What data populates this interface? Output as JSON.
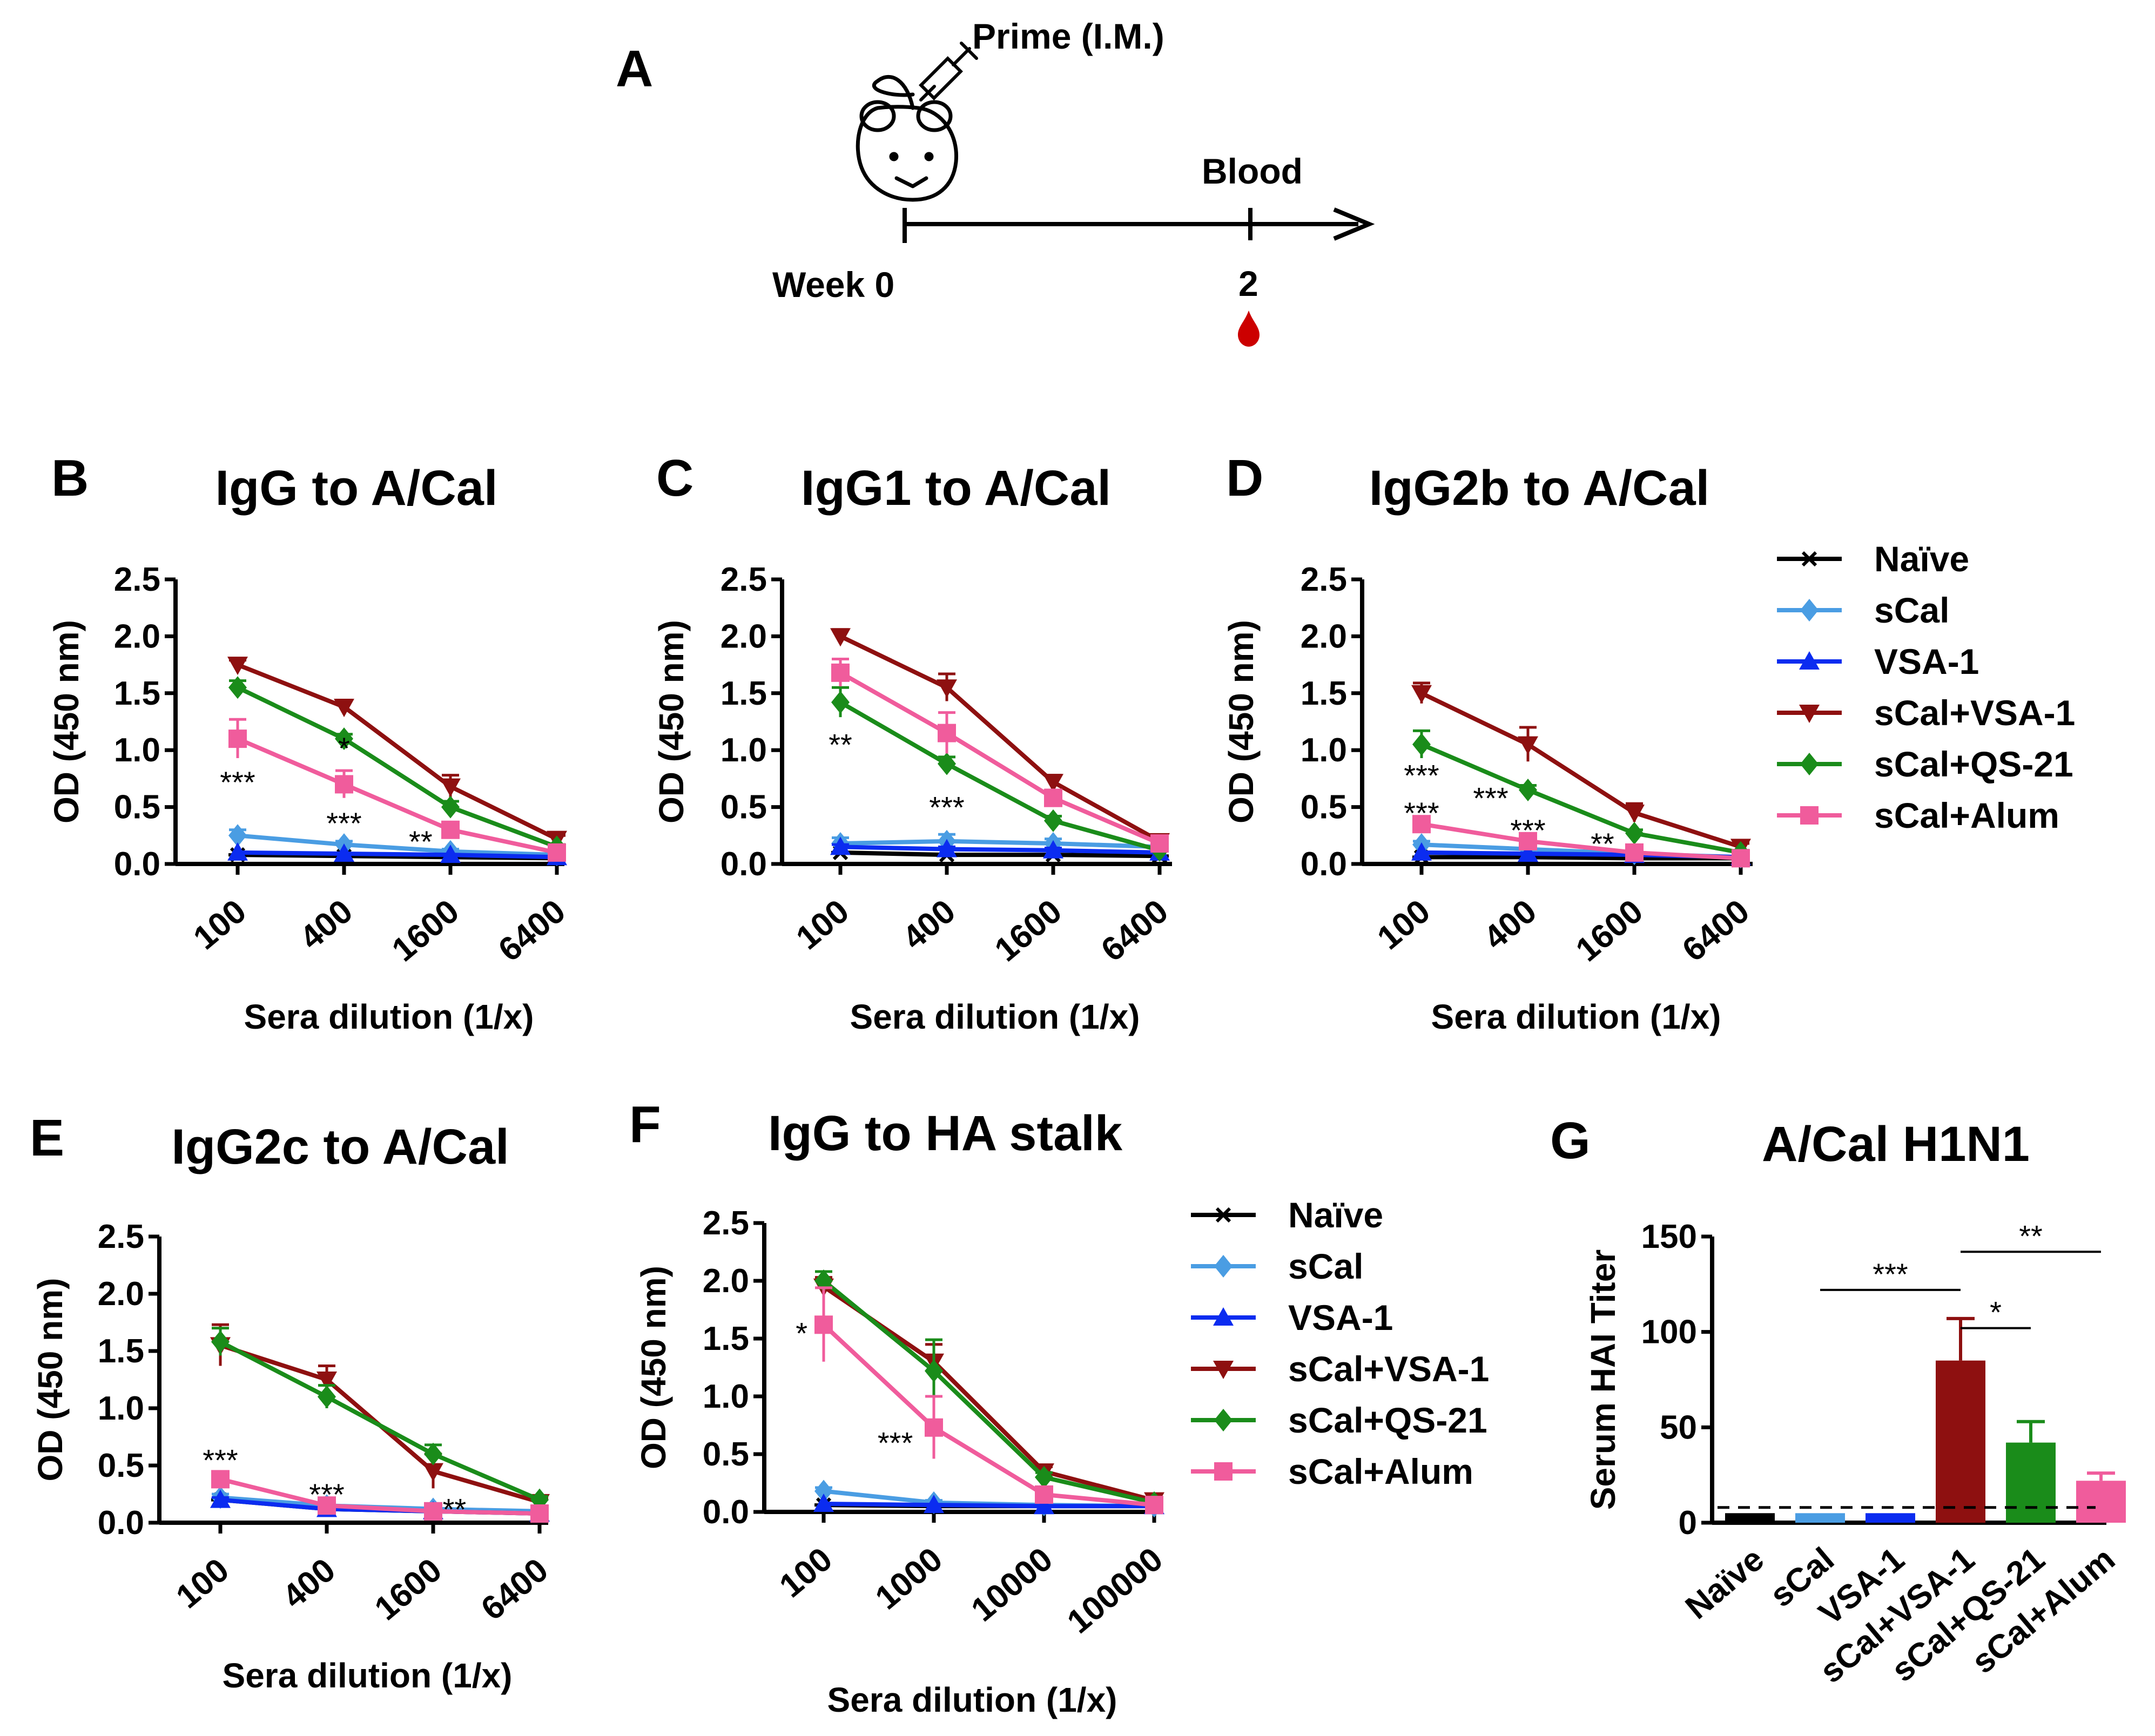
{
  "timeline": {
    "panel_letter": "A",
    "prime_label": "Prime (I.M.)",
    "blood_label": "Blood",
    "week0_label": "Week 0",
    "week2_label": "2",
    "blood_drop_color": "#cc0000",
    "mouse_icon": "mouse-icon",
    "syringe_icon": "syringe-icon"
  },
  "series_styles": [
    {
      "name": "Naïve",
      "color": "#000000",
      "marker": "star"
    },
    {
      "name": "sCal",
      "color": "#4a9de3",
      "marker": "diamond"
    },
    {
      "name": "VSA-1",
      "color": "#0b2cf0",
      "marker": "triangle-up"
    },
    {
      "name": "sCal+VSA-1",
      "color": "#8e1010",
      "marker": "triangle-down"
    },
    {
      "name": "sCal+QS-21",
      "color": "#1a8c1a",
      "marker": "diamond"
    },
    {
      "name": "sCal+Alum",
      "color": "#f05c9c",
      "marker": "square"
    }
  ],
  "chart_data": [
    {
      "id": "B",
      "letter": "B",
      "type": "line",
      "title": "IgG to A/Cal",
      "xlabel": "Sera dilution (1/x)",
      "ylabel": "OD (450 nm)",
      "x": [
        "100",
        "400",
        "1600",
        "6400"
      ],
      "ylim": [
        0,
        2.5
      ],
      "yticks": [
        "0.0",
        "0.5",
        "1.0",
        "1.5",
        "2.0",
        "2.5"
      ],
      "series": [
        {
          "name": "Naïve",
          "values": [
            0.08,
            0.07,
            0.06,
            0.05
          ],
          "errors": [
            0.01,
            0.01,
            0.01,
            0.01
          ]
        },
        {
          "name": "sCal",
          "values": [
            0.25,
            0.17,
            0.11,
            0.08
          ],
          "errors": [
            0.05,
            0.03,
            0.02,
            0.01
          ]
        },
        {
          "name": "VSA-1",
          "values": [
            0.1,
            0.09,
            0.08,
            0.06
          ],
          "errors": [
            0.01,
            0.01,
            0.01,
            0.01
          ]
        },
        {
          "name": "sCal+VSA-1",
          "values": [
            1.75,
            1.38,
            0.68,
            0.22
          ],
          "errors": [
            0.04,
            0.06,
            0.1,
            0.03
          ]
        },
        {
          "name": "sCal+QS-21",
          "values": [
            1.55,
            1.1,
            0.5,
            0.15
          ],
          "errors": [
            0.06,
            0.04,
            0.05,
            0.02
          ]
        },
        {
          "name": "sCal+Alum",
          "values": [
            1.1,
            0.7,
            0.3,
            0.1
          ],
          "errors": [
            0.17,
            0.12,
            0.04,
            0.02
          ]
        }
      ],
      "annotations": [
        {
          "text": "***",
          "x": 0,
          "y": 0.72
        },
        {
          "text": "*",
          "x": 1,
          "y": 1.02
        },
        {
          "text": "***",
          "x": 1,
          "y": 0.36
        },
        {
          "text": "**",
          "x": 1.72,
          "y": 0.2
        }
      ]
    },
    {
      "id": "C",
      "letter": "C",
      "type": "line",
      "title": "IgG1 to A/Cal",
      "xlabel": "Sera dilution (1/x)",
      "ylabel": "OD (450 nm)",
      "x": [
        "100",
        "400",
        "1600",
        "6400"
      ],
      "ylim": [
        0,
        2.5
      ],
      "yticks": [
        "0.0",
        "0.5",
        "1.0",
        "1.5",
        "2.0",
        "2.5"
      ],
      "series": [
        {
          "name": "Naïve",
          "values": [
            0.1,
            0.08,
            0.08,
            0.07
          ],
          "errors": [
            0.01,
            0.01,
            0.01,
            0.01
          ]
        },
        {
          "name": "sCal",
          "values": [
            0.18,
            0.2,
            0.18,
            0.15
          ],
          "errors": [
            0.05,
            0.06,
            0.04,
            0.03
          ]
        },
        {
          "name": "VSA-1",
          "values": [
            0.15,
            0.13,
            0.12,
            0.1
          ],
          "errors": [
            0.02,
            0.02,
            0.02,
            0.02
          ]
        },
        {
          "name": "sCal+VSA-1",
          "values": [
            2.0,
            1.55,
            0.72,
            0.2
          ],
          "errors": [
            0.06,
            0.12,
            0.06,
            0.03
          ]
        },
        {
          "name": "sCal+QS-21",
          "values": [
            1.42,
            0.88,
            0.38,
            0.12
          ],
          "errors": [
            0.13,
            0.06,
            0.04,
            0.02
          ]
        },
        {
          "name": "sCal+Alum",
          "values": [
            1.68,
            1.15,
            0.58,
            0.18
          ],
          "errors": [
            0.12,
            0.18,
            0.07,
            0.03
          ]
        }
      ],
      "annotations": [
        {
          "text": "**",
          "x": 0,
          "y": 1.05
        },
        {
          "text": "***",
          "x": 1,
          "y": 0.5
        }
      ]
    },
    {
      "id": "D",
      "letter": "D",
      "type": "line",
      "title": "IgG2b to A/Cal",
      "xlabel": "Sera dilution (1/x)",
      "ylabel": "OD (450 nm)",
      "x": [
        "100",
        "400",
        "1600",
        "6400"
      ],
      "ylim": [
        0,
        2.5
      ],
      "yticks": [
        "0.0",
        "0.5",
        "1.0",
        "1.5",
        "2.0",
        "2.5"
      ],
      "series": [
        {
          "name": "Naïve",
          "values": [
            0.06,
            0.06,
            0.05,
            0.05
          ],
          "errors": [
            0.01,
            0.01,
            0.01,
            0.01
          ]
        },
        {
          "name": "sCal",
          "values": [
            0.17,
            0.13,
            0.09,
            0.06
          ],
          "errors": [
            0.03,
            0.02,
            0.02,
            0.01
          ]
        },
        {
          "name": "VSA-1",
          "values": [
            0.1,
            0.09,
            0.08,
            0.06
          ],
          "errors": [
            0.01,
            0.01,
            0.01,
            0.01
          ]
        },
        {
          "name": "sCal+VSA-1",
          "values": [
            1.5,
            1.05,
            0.45,
            0.15
          ],
          "errors": [
            0.09,
            0.15,
            0.08,
            0.03
          ]
        },
        {
          "name": "sCal+QS-21",
          "values": [
            1.05,
            0.65,
            0.27,
            0.1
          ],
          "errors": [
            0.12,
            0.04,
            0.03,
            0.02
          ]
        },
        {
          "name": "sCal+Alum",
          "values": [
            0.35,
            0.2,
            0.1,
            0.05
          ],
          "errors": [
            0.06,
            0.04,
            0.02,
            0.01
          ]
        }
      ],
      "annotations": [
        {
          "text": "***",
          "x": 0,
          "y": 0.78
        },
        {
          "text": "***",
          "x": 0,
          "y": 0.45
        },
        {
          "text": "***",
          "x": 0.65,
          "y": 0.58
        },
        {
          "text": "***",
          "x": 1,
          "y": 0.3
        },
        {
          "text": "**",
          "x": 1.7,
          "y": 0.18
        }
      ]
    },
    {
      "id": "E",
      "letter": "E",
      "type": "line",
      "title": "IgG2c to A/Cal",
      "xlabel": "Sera dilution (1/x)",
      "ylabel": "OD (450 nm)",
      "x": [
        "100",
        "400",
        "1600",
        "6400"
      ],
      "ylim": [
        0,
        2.5
      ],
      "yticks": [
        "0.0",
        "0.5",
        "1.0",
        "1.5",
        "2.0",
        "2.5"
      ],
      "series": [
        {
          "name": "Naïve",
          "values": [
            0.2,
            0.12,
            0.1,
            0.08
          ],
          "errors": [
            0.02,
            0.02,
            0.01,
            0.01
          ]
        },
        {
          "name": "sCal",
          "values": [
            0.22,
            0.15,
            0.12,
            0.1
          ],
          "errors": [
            0.03,
            0.02,
            0.02,
            0.01
          ]
        },
        {
          "name": "VSA-1",
          "values": [
            0.2,
            0.12,
            0.1,
            0.08
          ],
          "errors": [
            0.02,
            0.02,
            0.01,
            0.01
          ]
        },
        {
          "name": "sCal+VSA-1",
          "values": [
            1.55,
            1.25,
            0.45,
            0.18
          ],
          "errors": [
            0.18,
            0.12,
            0.15,
            0.03
          ]
        },
        {
          "name": "sCal+QS-21",
          "values": [
            1.58,
            1.1,
            0.6,
            0.2
          ],
          "errors": [
            0.12,
            0.1,
            0.08,
            0.03
          ]
        },
        {
          "name": "sCal+Alum",
          "values": [
            0.38,
            0.15,
            0.1,
            0.08
          ],
          "errors": [
            0.05,
            0.03,
            0.02,
            0.01
          ]
        }
      ],
      "annotations": [
        {
          "text": "***",
          "x": 0,
          "y": 0.55
        },
        {
          "text": "***",
          "x": 1,
          "y": 0.25
        },
        {
          "text": "**",
          "x": 2.2,
          "y": 0.12
        }
      ]
    },
    {
      "id": "F",
      "letter": "F",
      "type": "line",
      "title": "IgG to HA stalk",
      "xlabel": "Sera dilution (1/x)",
      "ylabel": "OD (450 nm)",
      "x": [
        "100",
        "1000",
        "10000",
        "100000"
      ],
      "ylim": [
        0,
        2.5
      ],
      "yticks": [
        "0.0",
        "0.5",
        "1.0",
        "1.5",
        "2.0",
        "2.5"
      ],
      "series": [
        {
          "name": "Naïve",
          "values": [
            0.06,
            0.05,
            0.05,
            0.05
          ],
          "errors": [
            0.01,
            0.01,
            0.01,
            0.01
          ]
        },
        {
          "name": "sCal",
          "values": [
            0.18,
            0.08,
            0.06,
            0.05
          ],
          "errors": [
            0.03,
            0.02,
            0.01,
            0.01
          ]
        },
        {
          "name": "VSA-1",
          "values": [
            0.07,
            0.06,
            0.05,
            0.05
          ],
          "errors": [
            0.01,
            0.01,
            0.01,
            0.01
          ]
        },
        {
          "name": "sCal+VSA-1",
          "values": [
            1.95,
            1.3,
            0.35,
            0.1
          ],
          "errors": [
            0.08,
            0.15,
            0.04,
            0.02
          ]
        },
        {
          "name": "sCal+QS-21",
          "values": [
            2.0,
            1.22,
            0.3,
            0.08
          ],
          "errors": [
            0.08,
            0.27,
            0.04,
            0.02
          ]
        },
        {
          "name": "sCal+Alum",
          "values": [
            1.62,
            0.73,
            0.15,
            0.06
          ],
          "errors": [
            0.32,
            0.27,
            0.04,
            0.01
          ]
        }
      ],
      "annotations": [
        {
          "text": "*",
          "x": -0.2,
          "y": 1.55
        },
        {
          "text": "***",
          "x": 0.65,
          "y": 0.6
        }
      ]
    },
    {
      "id": "G",
      "letter": "G",
      "type": "bar",
      "title": "A/Cal H1N1",
      "xlabel": "",
      "ylabel": "Serum HAI Titer",
      "categories": [
        "Naïve",
        "sCal",
        "VSA-1",
        "sCal+VSA-1",
        "sCal+QS-21",
        "sCal+Alum"
      ],
      "values": [
        5,
        5,
        5,
        85,
        42,
        22
      ],
      "errors": [
        0,
        0,
        0,
        22,
        11,
        4
      ],
      "ylim": [
        0,
        150
      ],
      "yticks": [
        "0",
        "50",
        "100",
        "150"
      ],
      "baseline": 8,
      "significance": [
        {
          "from": 1,
          "to": 3,
          "y": 122,
          "text": "***"
        },
        {
          "from": 3,
          "to": 4,
          "y": 102,
          "text": "*"
        },
        {
          "from": 3,
          "to": 5,
          "y": 142,
          "text": "**"
        }
      ]
    }
  ]
}
